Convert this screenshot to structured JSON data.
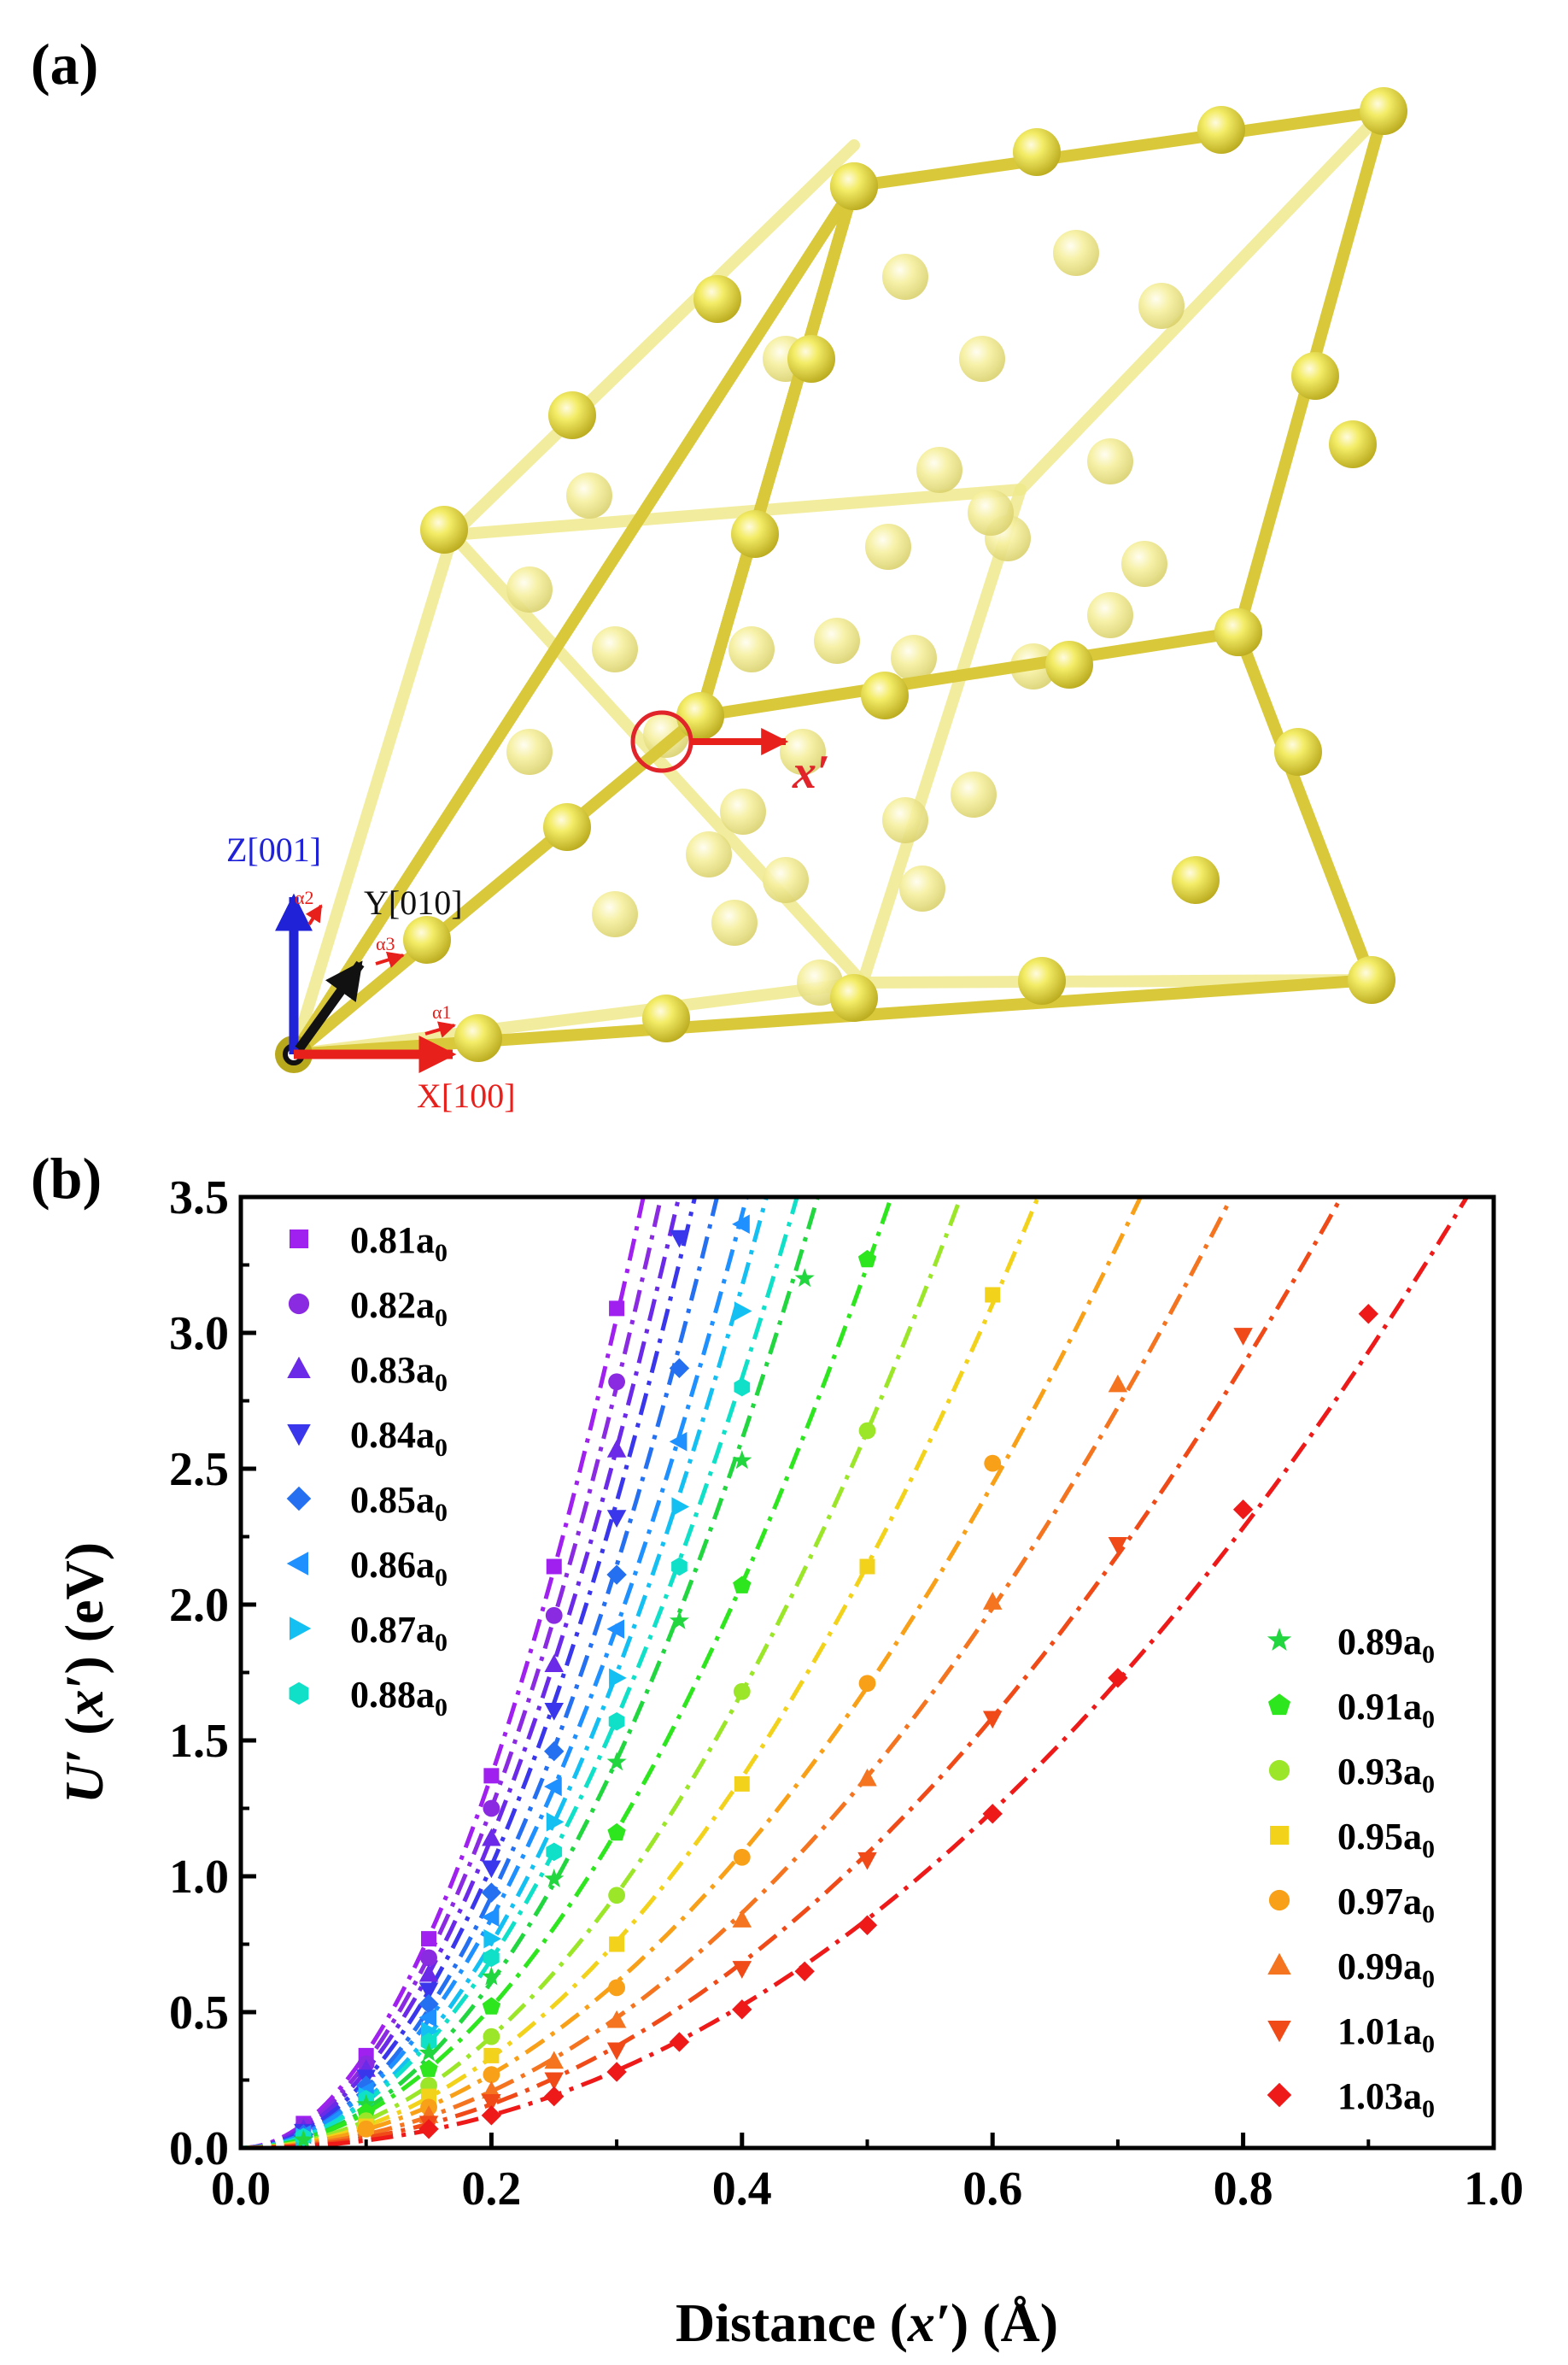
{
  "panel_a": {
    "label": "(a)",
    "axes": {
      "z": "Z[001]",
      "y": "Y[010]",
      "x": "X[100]",
      "alpha1": "α1",
      "alpha2": "α2",
      "alpha3": "α3"
    },
    "displacement_label": "x′",
    "colors": {
      "atom": "#ece64a",
      "bond": "#e6d83a",
      "marker": "#e0242a",
      "z_axis": "#1f22d6",
      "x_axis": "#e8201c",
      "y_axis": "#111111"
    }
  },
  "panel_b": {
    "label": "(b)"
  },
  "chart_data": {
    "type": "scatter",
    "xlabel_parts": [
      "Distance (",
      "x′",
      ") (Å)"
    ],
    "ylabel_parts": [
      "U′",
      " (",
      "x′",
      ") (eV)"
    ],
    "xlim": [
      0.0,
      1.0
    ],
    "ylim": [
      0.0,
      3.5
    ],
    "xticks": [
      "0.0",
      "0.2",
      "0.4",
      "0.6",
      "0.8",
      "1.0"
    ],
    "yticks": [
      "0.0",
      "0.5",
      "1.0",
      "1.5",
      "2.0",
      "2.5",
      "3.0",
      "3.5"
    ],
    "legend_left": [
      "0.81a0",
      "0.82a0",
      "0.83a0",
      "0.84a0",
      "0.85a0",
      "0.86a0",
      "0.87a0",
      "0.88a0"
    ],
    "legend_right": [
      "0.89a0",
      "0.91a0",
      "0.93a0",
      "0.95a0",
      "0.97a0",
      "0.99a0",
      "1.01a0",
      "1.03a0"
    ],
    "series": [
      {
        "name": "0.81a0",
        "color": "#a020f0",
        "marker": "square",
        "x": [
          0.05,
          0.1,
          0.15,
          0.2,
          0.25,
          0.3
        ],
        "values": [
          0.09,
          0.34,
          0.77,
          1.37,
          2.14,
          3.09
        ]
      },
      {
        "name": "0.82a0",
        "color": "#8a2be2",
        "marker": "circle",
        "x": [
          0.05,
          0.1,
          0.15,
          0.2,
          0.25,
          0.3
        ],
        "values": [
          0.08,
          0.31,
          0.7,
          1.25,
          1.96,
          2.82
        ]
      },
      {
        "name": "0.83a0",
        "color": "#6a2ae8",
        "marker": "triangle-up",
        "x": [
          0.05,
          0.1,
          0.15,
          0.2,
          0.25,
          0.3
        ],
        "values": [
          0.07,
          0.29,
          0.64,
          1.14,
          1.78,
          2.57
        ]
      },
      {
        "name": "0.84a0",
        "color": "#3a36ec",
        "marker": "triangle-down",
        "x": [
          0.05,
          0.1,
          0.15,
          0.2,
          0.25,
          0.3,
          0.35
        ],
        "values": [
          0.06,
          0.26,
          0.58,
          1.03,
          1.61,
          2.32,
          3.35
        ]
      },
      {
        "name": "0.85a0",
        "color": "#2470f0",
        "marker": "diamond",
        "x": [
          0.05,
          0.1,
          0.15,
          0.2,
          0.25,
          0.3,
          0.35
        ],
        "values": [
          0.05,
          0.23,
          0.53,
          0.94,
          1.46,
          2.11,
          2.87
        ]
      },
      {
        "name": "0.86a0",
        "color": "#1e90ff",
        "marker": "triangle-left",
        "x": [
          0.05,
          0.1,
          0.15,
          0.2,
          0.25,
          0.3,
          0.35,
          0.4
        ],
        "values": [
          0.05,
          0.21,
          0.48,
          0.85,
          1.33,
          1.91,
          2.6,
          3.4
        ]
      },
      {
        "name": "0.87a0",
        "color": "#14c0f2",
        "marker": "triangle-right",
        "x": [
          0.05,
          0.1,
          0.15,
          0.2,
          0.25,
          0.3,
          0.35,
          0.4
        ],
        "values": [
          0.04,
          0.19,
          0.43,
          0.77,
          1.2,
          1.73,
          2.36,
          3.08
        ]
      },
      {
        "name": "0.88a0",
        "color": "#10e0c8",
        "marker": "hexagon",
        "x": [
          0.05,
          0.1,
          0.15,
          0.2,
          0.25,
          0.3,
          0.35,
          0.4
        ],
        "values": [
          0.04,
          0.18,
          0.39,
          0.7,
          1.09,
          1.57,
          2.14,
          2.8
        ]
      },
      {
        "name": "0.89a0",
        "color": "#22d640",
        "marker": "star",
        "x": [
          0.05,
          0.1,
          0.15,
          0.2,
          0.25,
          0.3,
          0.35,
          0.4,
          0.45
        ],
        "values": [
          0.03,
          0.16,
          0.35,
          0.63,
          0.99,
          1.42,
          1.94,
          2.53,
          3.2
        ]
      },
      {
        "name": "0.91a0",
        "color": "#2ee61e",
        "marker": "pentagon",
        "x": [
          0.1,
          0.15,
          0.2,
          0.3,
          0.4,
          0.5
        ],
        "values": [
          0.13,
          0.29,
          0.52,
          1.16,
          2.07,
          3.27
        ]
      },
      {
        "name": "0.93a0",
        "color": "#9ce62a",
        "marker": "circle",
        "x": [
          0.1,
          0.15,
          0.2,
          0.3,
          0.4,
          0.5
        ],
        "values": [
          0.1,
          0.23,
          0.41,
          0.93,
          1.68,
          2.64
        ]
      },
      {
        "name": "0.95a0",
        "color": "#f2d21a",
        "marker": "square",
        "x": [
          0.1,
          0.15,
          0.2,
          0.3,
          0.4,
          0.5,
          0.6
        ],
        "values": [
          0.08,
          0.19,
          0.34,
          0.75,
          1.34,
          2.14,
          3.14
        ]
      },
      {
        "name": "0.97a0",
        "color": "#f8a018",
        "marker": "circle",
        "x": [
          0.1,
          0.15,
          0.2,
          0.3,
          0.4,
          0.5,
          0.6
        ],
        "values": [
          0.07,
          0.15,
          0.27,
          0.59,
          1.07,
          1.71,
          2.52
        ]
      },
      {
        "name": "0.99a0",
        "color": "#f47420",
        "marker": "triangle-up",
        "x": [
          0.15,
          0.2,
          0.25,
          0.3,
          0.4,
          0.5,
          0.6,
          0.7
        ],
        "values": [
          0.12,
          0.21,
          0.32,
          0.47,
          0.84,
          1.36,
          2.01,
          2.81
        ]
      },
      {
        "name": "1.01a0",
        "color": "#f04a18",
        "marker": "triangle-down",
        "x": [
          0.15,
          0.2,
          0.25,
          0.3,
          0.4,
          0.5,
          0.6,
          0.7,
          0.8
        ],
        "values": [
          0.09,
          0.17,
          0.25,
          0.36,
          0.66,
          1.06,
          1.58,
          2.22,
          2.99
        ]
      },
      {
        "name": "1.03a0",
        "color": "#ee1a1a",
        "marker": "diamond",
        "x": [
          0.15,
          0.2,
          0.25,
          0.3,
          0.35,
          0.4,
          0.45,
          0.5,
          0.6,
          0.7,
          0.8,
          0.9
        ],
        "values": [
          0.07,
          0.12,
          0.19,
          0.28,
          0.39,
          0.51,
          0.65,
          0.82,
          1.23,
          1.73,
          2.35,
          3.07
        ]
      }
    ]
  }
}
